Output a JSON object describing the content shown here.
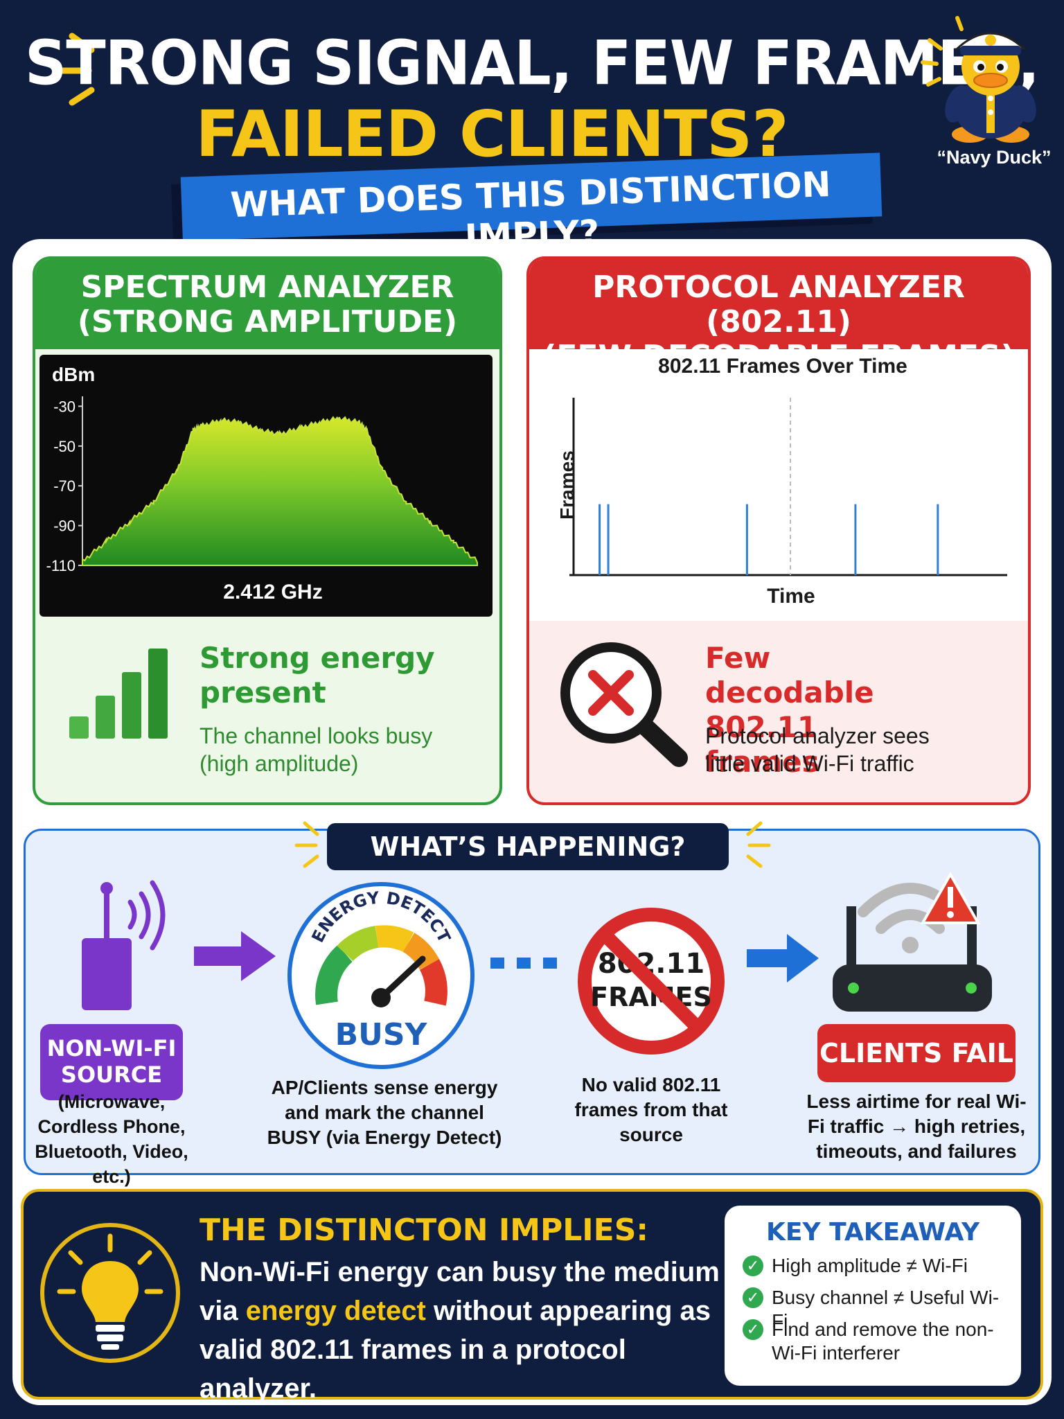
{
  "header": {
    "title_line1": "STRONG SIGNAL, FEW FRAMES,",
    "title_line2": "FAILED CLIENTS?",
    "subtitle": "WHAT DOES THIS DISTINCTION IMPLY?",
    "mascot_caption": "“Navy Duck”"
  },
  "spectrum_panel": {
    "title_line1": "SPECTRUM ANALYZER",
    "title_line2": "(STRONG AMPLITUDE)",
    "headline": "Strong energy present",
    "body": "The channel looks busy (high amplitude)",
    "colors": {
      "accent": "#2f9e3a",
      "trace": "#9bd62a"
    }
  },
  "protocol_panel": {
    "title_line1": "PROTOCOL ANALYZER (802.11)",
    "title_line2": "(FEW DECODABLE FRAMES)",
    "headline": "Few decodable 802.11 frames",
    "body": "Protocol analyzer sees little valid Wi-Fi traffic",
    "colors": {
      "accent": "#d72a2a"
    }
  },
  "chart_data": [
    {
      "type": "area",
      "title": "",
      "ylabel": "dBm",
      "xlabel": "2.412 GHz",
      "yticks": [
        -30,
        -50,
        -70,
        -90,
        -110
      ],
      "ylim": [
        -110,
        -25
      ],
      "xlim": [
        0,
        100
      ],
      "grid": false,
      "legend": "none",
      "series": [
        {
          "x": [
            0,
            6,
            12,
            18,
            24,
            28,
            30,
            35,
            40,
            45,
            50,
            55,
            60,
            65,
            70,
            72,
            76,
            82,
            88,
            94,
            100
          ],
          "y": [
            -108,
            -98,
            -88,
            -78,
            -62,
            -42,
            -40,
            -37,
            -38,
            -42,
            -44,
            -41,
            -38,
            -36,
            -38,
            -42,
            -62,
            -78,
            -88,
            -98,
            -108
          ]
        }
      ]
    },
    {
      "type": "bar",
      "title": "802.11 Frames Over Time",
      "xlabel": "Time",
      "ylabel": "Frames",
      "grid": false,
      "legend": "none",
      "x": [
        6,
        8,
        40,
        65,
        84
      ],
      "values": [
        1,
        1,
        1,
        1,
        1
      ],
      "xlim": [
        0,
        100
      ],
      "ylim": [
        0,
        2.5
      ],
      "marker_x": 50
    }
  ],
  "happening": {
    "title": "WHAT’S HAPPENING?",
    "source_label": "NON-WI-FI SOURCE",
    "source_caption": "(Microwave, Cordless Phone, Bluetooth, Video, etc.)",
    "gauge_label": "ENERGY DETECT",
    "gauge_value": "BUSY",
    "gauge_caption": "AP/Clients sense energy and mark the channel BUSY (via Energy Detect)",
    "frames_sign": "802.11 FRAMES",
    "frames_caption": "No valid 802.11 frames from that source",
    "clients_label": "CLIENTS FAIL",
    "clients_caption": "Less airtime for real Wi-Fi traffic → high retries, timeouts, and failures",
    "colors": {
      "source": "#7a36c8",
      "arrow_blue": "#1e6fd6",
      "fail": "#d72a2a"
    }
  },
  "implies": {
    "title": "THE DISTINCTON IMPLIES:",
    "body_pre": "Non-Wi-Fi energy can busy the medium via ",
    "body_highlight": "energy detect",
    "body_post": " without appearing as valid 802.11 frames in a protocol analyzer."
  },
  "takeaway": {
    "title": "KEY TAKEAWAY",
    "items": [
      "High amplitude ≠ Wi-Fi",
      "Busy channel ≠ Useful Wi-Fi",
      "Find and remove the non-Wi-Fi interferer"
    ]
  }
}
